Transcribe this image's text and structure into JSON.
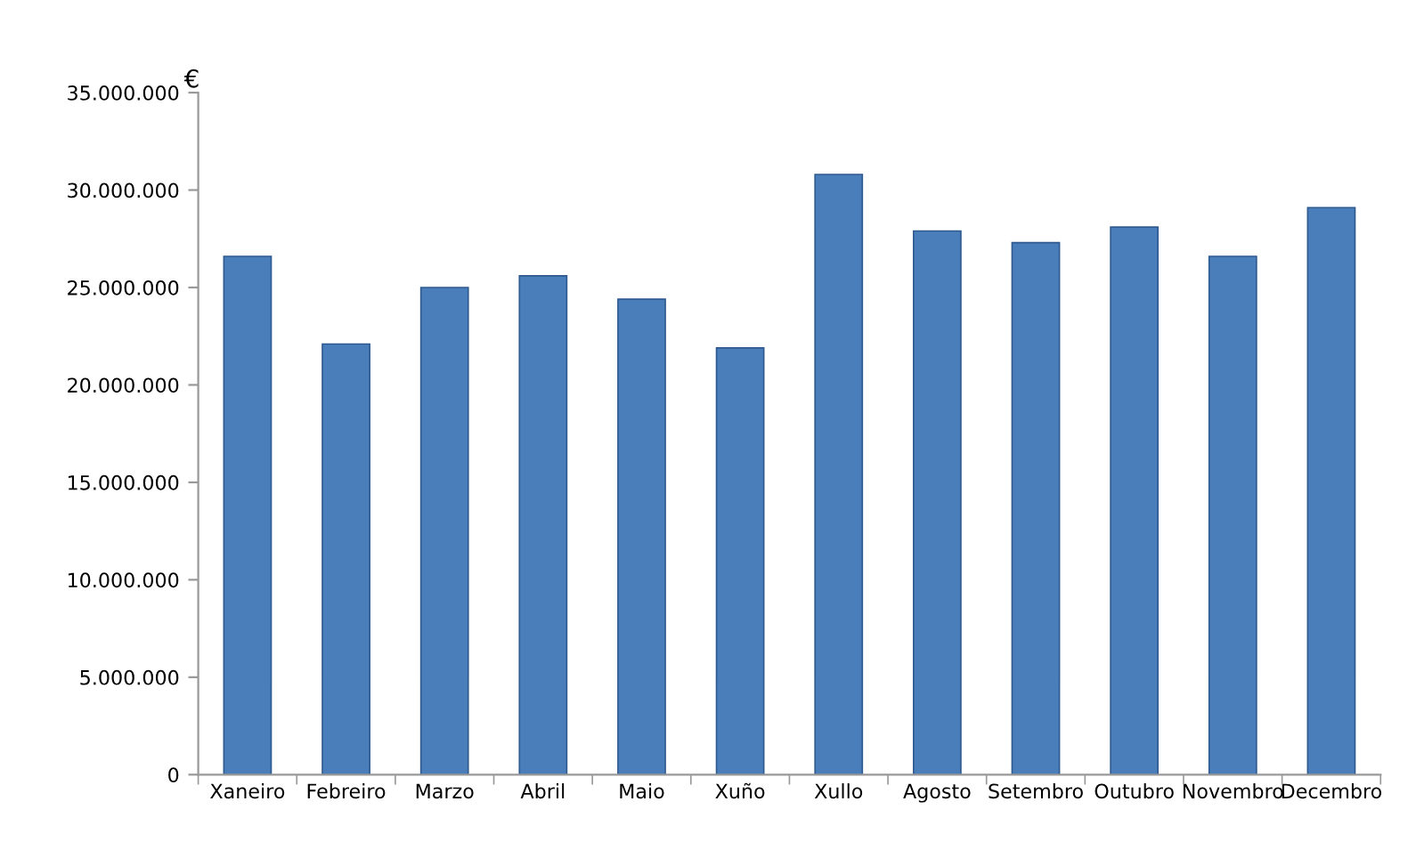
{
  "chart_data": {
    "type": "bar",
    "ylabel": "€",
    "categories": [
      "Xaneiro",
      "Febreiro",
      "Marzo",
      "Abril",
      "Maio",
      "Xuño",
      "Xullo",
      "Agosto",
      "Setembro",
      "Outubro",
      "Novembro",
      "Decembro"
    ],
    "values": [
      26600000,
      22100000,
      25000000,
      25600000,
      24400000,
      21900000,
      30800000,
      27900000,
      27300000,
      28100000,
      26600000,
      29100000
    ],
    "color": "#4a7ebb",
    "ylim": [
      0,
      35000000
    ],
    "yticks": [
      {
        "value": 0,
        "label": "0"
      },
      {
        "value": 5000000,
        "label": "5.000.000"
      },
      {
        "value": 10000000,
        "label": "10.000.000"
      },
      {
        "value": 15000000,
        "label": "15.000.000"
      },
      {
        "value": 20000000,
        "label": "20.000.000"
      },
      {
        "value": 25000000,
        "label": "25.000.000"
      },
      {
        "value": 30000000,
        "label": "30.000.000"
      },
      {
        "value": 35000000,
        "label": "35.000.000"
      }
    ],
    "grid": false
  }
}
